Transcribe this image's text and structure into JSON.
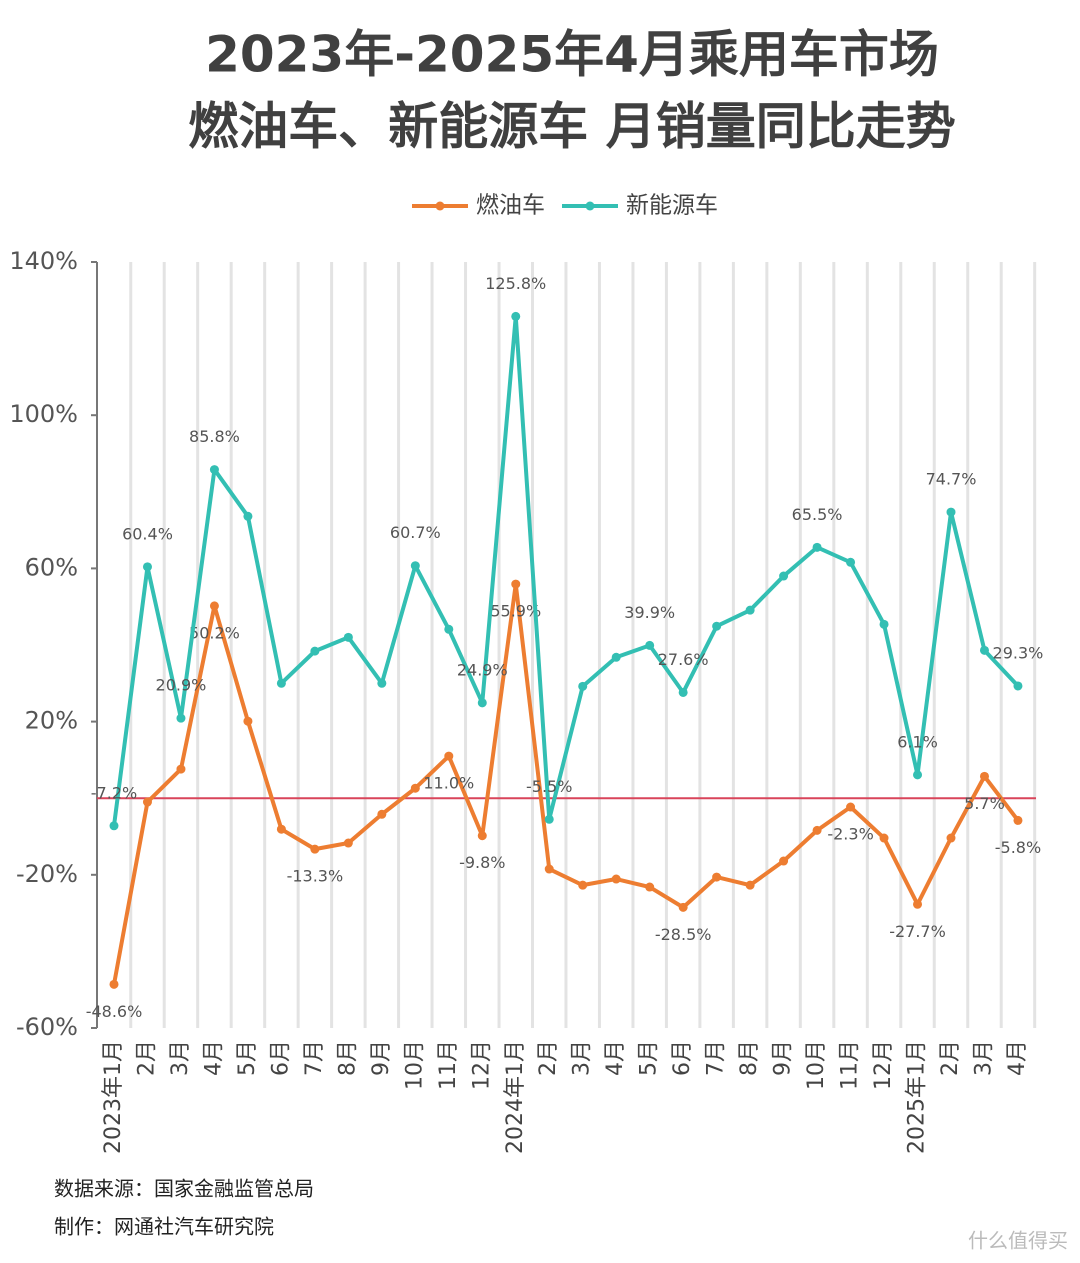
{
  "chart_data": {
    "type": "line",
    "title": "2023年-2025年4月乘用车市场",
    "subtitle": "燃油车、新能源车 月销量同比走势",
    "categories": [
      "2023年1月",
      "2月",
      "3月",
      "4月",
      "5月",
      "6月",
      "7月",
      "8月",
      "9月",
      "10月",
      "11月",
      "12月",
      "2024年1月",
      "2月",
      "3月",
      "4月",
      "5月",
      "6月",
      "7月",
      "8月",
      "9月",
      "10月",
      "11月",
      "12月",
      "2025年1月",
      "2月",
      "3月",
      "4月"
    ],
    "series": [
      {
        "name": "燃油车",
        "color": "#ed7d31",
        "values": [
          -48.6,
          -1.0,
          7.6,
          50.2,
          20.1,
          -8.1,
          -13.3,
          -11.7,
          -4.2,
          2.6,
          11.0,
          -9.8,
          55.9,
          -18.5,
          -22.7,
          -21.1,
          -23.2,
          -28.5,
          -20.6,
          -22.7,
          -16.4,
          -8.4,
          -2.3,
          -10.4,
          -27.7,
          -10.4,
          5.7,
          -5.8
        ],
        "value_labels": [
          "-48.6%",
          null,
          null,
          "50.2%",
          null,
          null,
          "-13.3%",
          null,
          null,
          null,
          "11.0%",
          "-9.8%",
          "55.9%",
          null,
          null,
          null,
          null,
          "-28.5%",
          null,
          null,
          null,
          null,
          "-2.3%",
          null,
          "-27.7%",
          null,
          "5.7%",
          "-5.8%"
        ]
      },
      {
        "name": "新能源车",
        "color": "#33bfb3",
        "values": [
          -7.2,
          60.4,
          20.9,
          85.8,
          73.6,
          30.0,
          38.4,
          42.0,
          30.0,
          60.7,
          44.1,
          24.9,
          125.8,
          -5.5,
          29.2,
          36.8,
          39.9,
          27.6,
          44.9,
          49.1,
          58.0,
          65.5,
          61.6,
          45.4,
          6.1,
          74.7,
          38.6,
          29.3
        ],
        "value_labels": [
          "-7.2%",
          "60.4%",
          "20.9%",
          "85.8%",
          null,
          null,
          null,
          null,
          null,
          "60.7%",
          null,
          "24.9%",
          "125.8%",
          "-5.5%",
          null,
          null,
          "39.9%",
          "27.6%",
          null,
          null,
          null,
          "65.5%",
          null,
          null,
          "6.1%",
          "74.7%",
          null,
          "29.3%"
        ]
      }
    ],
    "ylim": [
      -60,
      140
    ],
    "yticks": [
      {
        "value": -60,
        "label": "-60%"
      },
      {
        "value": -20,
        "label": "-20%"
      },
      {
        "value": 20,
        "label": "20%"
      },
      {
        "value": 60,
        "label": "60%"
      },
      {
        "value": 100,
        "label": "100%"
      },
      {
        "value": 140,
        "label": "140%"
      }
    ],
    "legend": "top"
  },
  "footer": {
    "source": "数据来源：国家金融监管总局",
    "author": "制作：网通社汽车研究院",
    "watermark": "什么值得买"
  }
}
